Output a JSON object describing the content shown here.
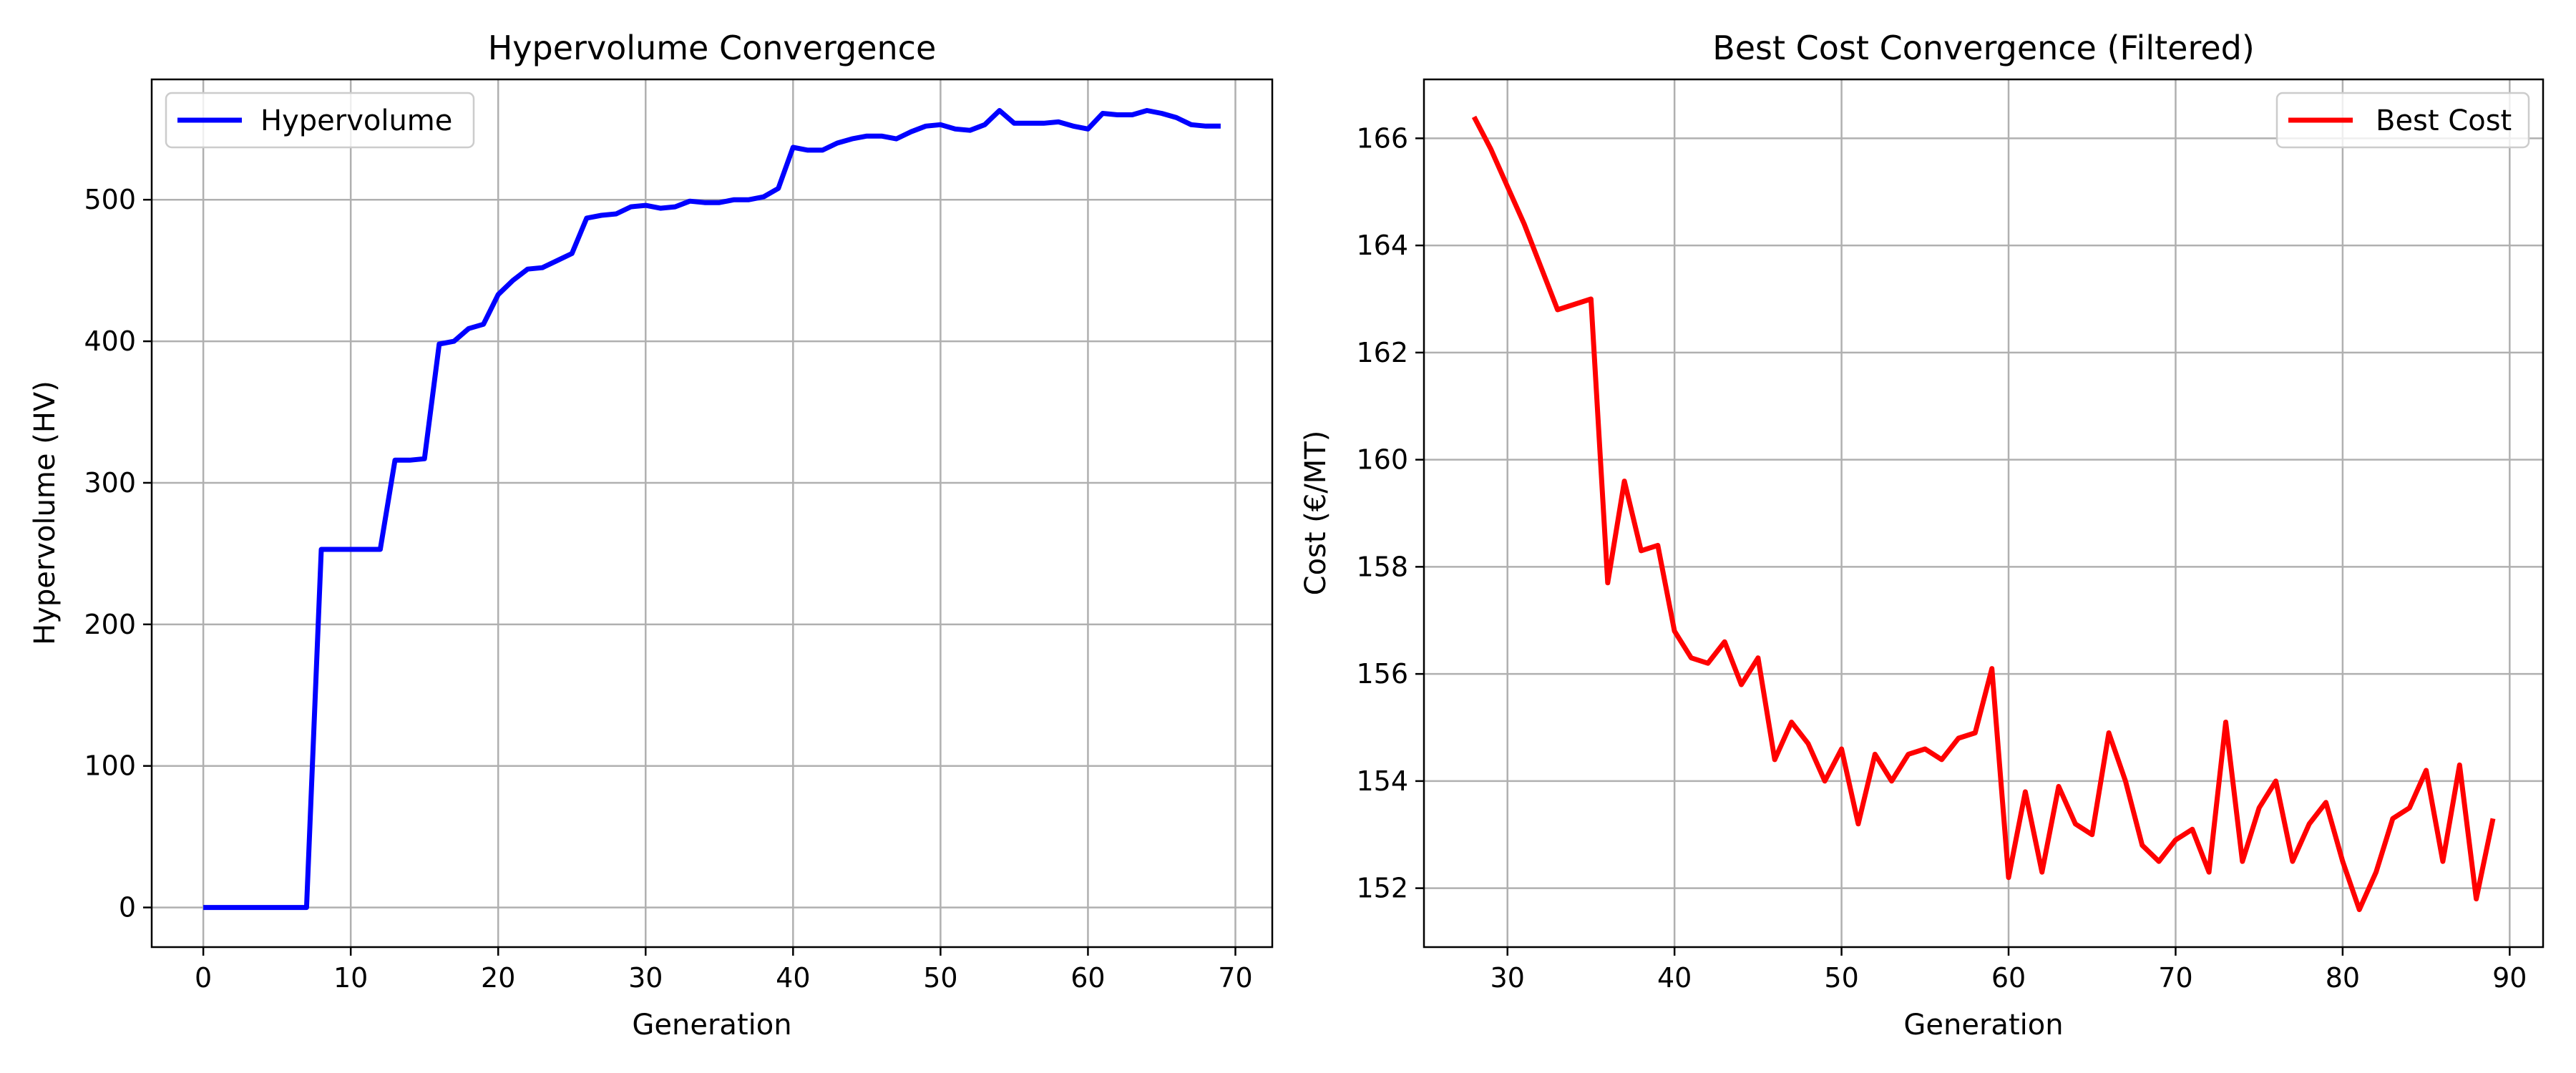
{
  "chart_data": [
    {
      "type": "line",
      "title": "Hypervolume Convergence",
      "xlabel": "Generation",
      "ylabel": "Hypervolume (HV)",
      "xlim": [
        -3.5,
        72.5
      ],
      "ylim": [
        -28,
        585
      ],
      "xticks": [
        0,
        10,
        20,
        30,
        40,
        50,
        60,
        70
      ],
      "yticks": [
        0,
        100,
        200,
        300,
        400,
        500
      ],
      "grid": true,
      "legend": "top-left",
      "color": "#0000ff",
      "series": [
        {
          "name": "Hypervolume",
          "x": [
            0,
            1,
            2,
            3,
            4,
            5,
            6,
            7,
            8,
            9,
            10,
            11,
            12,
            13,
            14,
            15,
            16,
            17,
            18,
            19,
            20,
            21,
            22,
            23,
            24,
            25,
            26,
            27,
            28,
            29,
            30,
            31,
            32,
            33,
            34,
            35,
            36,
            37,
            38,
            39,
            40,
            41,
            42,
            43,
            44,
            45,
            46,
            47,
            48,
            49,
            50,
            51,
            52,
            53,
            54,
            55,
            56,
            57,
            58,
            59,
            60,
            61,
            62,
            63,
            64,
            65,
            66,
            67,
            68,
            69
          ],
          "values": [
            0,
            0,
            0,
            0,
            0,
            0,
            0,
            0,
            253,
            253,
            253,
            253,
            253,
            316,
            316,
            317,
            398,
            400,
            409,
            412,
            433,
            443,
            451,
            452,
            457,
            462,
            487,
            489,
            490,
            495,
            496,
            494,
            495,
            499,
            498,
            498,
            500,
            500,
            502,
            508,
            537,
            535,
            535,
            540,
            543,
            545,
            545,
            543,
            548,
            552,
            553,
            550,
            549,
            553,
            563,
            554,
            554,
            554,
            555,
            552,
            550,
            561,
            560,
            560,
            563,
            561,
            558,
            553,
            552,
            552
          ]
        }
      ]
    },
    {
      "type": "line",
      "title": "Best Cost Convergence (Filtered)",
      "xlabel": "Generation",
      "ylabel": "Cost (€/MT)",
      "xlim": [
        25,
        92
      ],
      "ylim": [
        150.9,
        167.1
      ],
      "xticks": [
        30,
        40,
        50,
        60,
        70,
        80,
        90
      ],
      "yticks": [
        152,
        154,
        156,
        158,
        160,
        162,
        164,
        166
      ],
      "grid": true,
      "legend": "top-right",
      "color": "#ff0000",
      "series": [
        {
          "name": "Best Cost",
          "x": [
            28,
            29,
            30,
            31,
            32,
            33,
            34,
            35,
            36,
            37,
            38,
            39,
            40,
            41,
            42,
            43,
            44,
            45,
            46,
            47,
            48,
            49,
            50,
            51,
            52,
            53,
            54,
            55,
            56,
            57,
            58,
            59,
            60,
            61,
            62,
            63,
            64,
            65,
            66,
            67,
            68,
            69,
            70,
            71,
            72,
            73,
            74,
            75,
            76,
            77,
            78,
            79,
            80,
            81,
            82,
            83,
            84,
            85,
            86,
            87,
            88,
            89
          ],
          "values": [
            166.4,
            165.8,
            165.1,
            164.4,
            163.6,
            162.8,
            162.9,
            163.0,
            157.7,
            159.6,
            158.3,
            158.4,
            156.8,
            156.3,
            156.2,
            156.6,
            155.8,
            156.3,
            154.4,
            155.1,
            154.7,
            154.0,
            154.6,
            153.2,
            154.5,
            154.0,
            154.5,
            154.6,
            154.4,
            154.8,
            154.9,
            156.1,
            152.2,
            153.8,
            152.3,
            153.9,
            153.2,
            153.0,
            154.9,
            154.0,
            152.8,
            152.5,
            152.9,
            153.1,
            152.3,
            155.1,
            152.5,
            153.5,
            154.0,
            152.5,
            153.2,
            153.6,
            152.5,
            151.6,
            152.3,
            153.3,
            153.5,
            154.2,
            152.5,
            154.3,
            151.8,
            153.3
          ]
        }
      ]
    }
  ]
}
